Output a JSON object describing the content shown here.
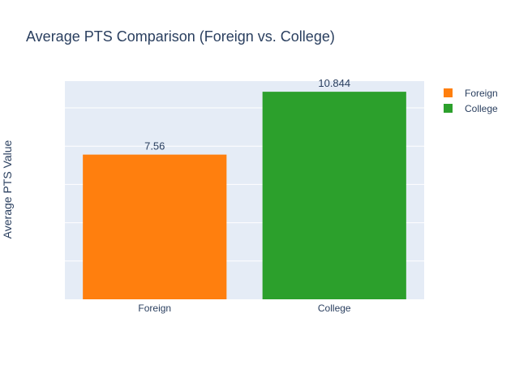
{
  "colors": {
    "plot_bg": "#e5ecf6",
    "grid": "#ffffff",
    "text": "#2a3f5f"
  },
  "chart_data": {
    "type": "bar",
    "title": "Average PTS Comparison (Foreign vs. College)",
    "xlabel": "",
    "ylabel": "Average PTS Value",
    "categories": [
      "Foreign",
      "College"
    ],
    "series": [
      {
        "name": "Foreign",
        "category": "Foreign",
        "value": 7.56,
        "label": "7.56",
        "color": "#ff7f0e"
      },
      {
        "name": "College",
        "category": "College",
        "value": 10.844,
        "label": "10.844",
        "color": "#2ca02c"
      }
    ],
    "ylim": [
      0,
      11.4
    ],
    "y_gridlines": [
      2,
      4,
      6,
      8,
      10
    ],
    "y_tick_labels_visible": false,
    "grid": true,
    "legend_position": "top-right"
  }
}
